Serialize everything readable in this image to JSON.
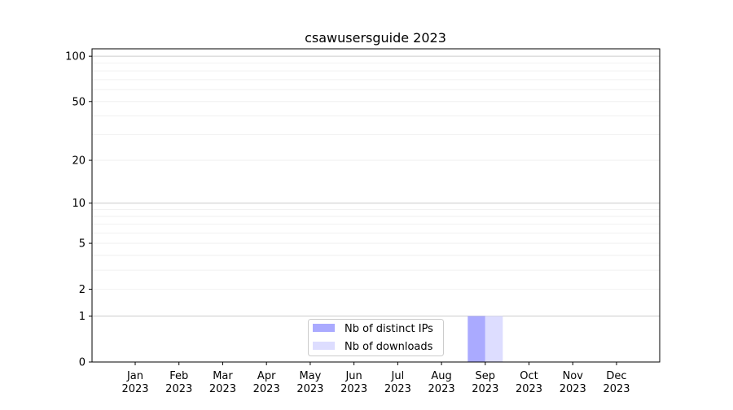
{
  "chart_data": {
    "type": "bar",
    "title": "csawusersguide 2023",
    "xlabel": "",
    "ylabel": "",
    "yscale": "log(1+y)",
    "ylim": [
      0,
      112
    ],
    "yticks": [
      0,
      1,
      2,
      5,
      10,
      20,
      50,
      100
    ],
    "grid": true,
    "legend_placement": "lower-center",
    "categories": [
      "Jan\n2023",
      "Feb\n2023",
      "Mar\n2023",
      "Apr\n2023",
      "May\n2023",
      "Jun\n2023",
      "Jul\n2023",
      "Aug\n2023",
      "Sep\n2023",
      "Oct\n2023",
      "Nov\n2023",
      "Dec\n2023"
    ],
    "series": [
      {
        "name": "Nb of distinct IPs",
        "color": "#aaaaff",
        "values": [
          0,
          0,
          0,
          0,
          0,
          0,
          0,
          0,
          1,
          0,
          0,
          0
        ]
      },
      {
        "name": "Nb of downloads",
        "color": "#ddddff",
        "values": [
          0,
          0,
          0,
          0,
          0,
          0,
          0,
          0,
          1,
          0,
          0,
          0
        ]
      }
    ]
  }
}
